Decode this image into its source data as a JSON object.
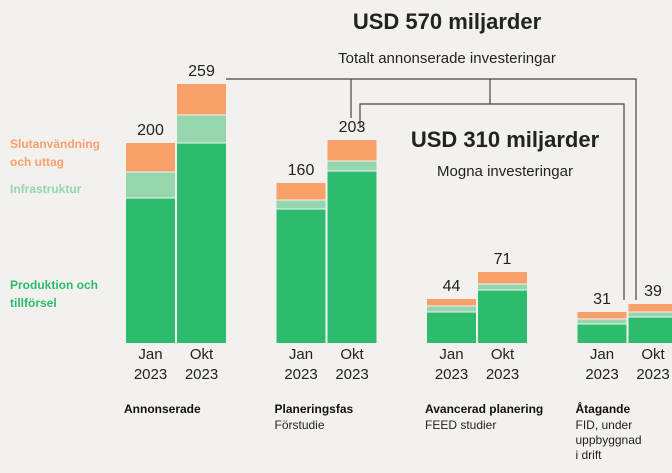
{
  "chart_data": {
    "type": "bar",
    "stacked": true,
    "annotations": [
      "USD 570 miljarder",
      "Totalt annonserade investeringar",
      "USD 310 miljarder",
      "Mogna investeringar"
    ],
    "groups": [
      {
        "name": "Annonserade",
        "description": null
      },
      {
        "name": "Planeringsfas",
        "description": "Förstudie"
      },
      {
        "name": "Avancerad planering",
        "description": "FEED studier"
      },
      {
        "name": "Åtagande",
        "description": "FID, under uppbyggnad i drift"
      }
    ],
    "categories": [
      "Jan 2023",
      "Okt 2023",
      "Jan 2023",
      "Okt 2023",
      "Jan 2023",
      "Okt 2023",
      "Jan 2023",
      "Okt 2023"
    ],
    "series": [
      {
        "name": "Produktion och tillförsel",
        "color": "#2dbb6e",
        "values": [
          145,
          200,
          134,
          172,
          31,
          53,
          19,
          26
        ]
      },
      {
        "name": "Infrastruktur",
        "color": "#96d6ae",
        "values": [
          26,
          28,
          9,
          10,
          6,
          6,
          5,
          5
        ]
      },
      {
        "name": "Slutanvändning och uttag",
        "color": "#f8a06a",
        "values": [
          29,
          31,
          17,
          21,
          7,
          12,
          7,
          8
        ]
      }
    ],
    "totals": [
      200,
      259,
      160,
      203,
      44,
      71,
      31,
      39
    ]
  }
}
